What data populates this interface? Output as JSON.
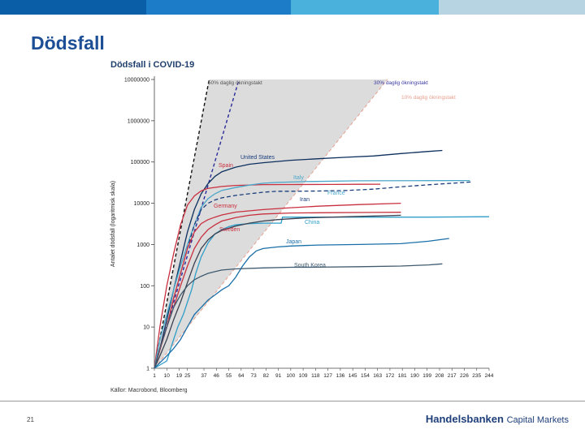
{
  "top_bar_colors": [
    "#0a5ea8",
    "#1d7cc8",
    "#4ab0dc",
    "#b7d4e3"
  ],
  "slide": {
    "title": "Dödsfall",
    "page_number": "21"
  },
  "logo": {
    "name": "Handelsbanken",
    "suffix": "Capital Markets",
    "color": "#1f3f7a"
  },
  "chart_data": {
    "type": "line",
    "title": "Dödsfall i COVID-19",
    "source": "Källor: Macrobond, Bloomberg",
    "xlabel": "",
    "ylabel": "Antalet dödsfall (logaritmisk skala)",
    "yscale": "log",
    "ylim": [
      1,
      10000000
    ],
    "y_ticks": [
      1,
      10,
      100,
      1000,
      10000,
      100000,
      1000000,
      10000000
    ],
    "y_tick_labels": [
      "1",
      "10",
      "100",
      "1000",
      "10000",
      "100000",
      "1000000",
      "10000000"
    ],
    "xlim": [
      1,
      244
    ],
    "x_ticks": [
      1,
      10,
      19,
      25,
      37,
      46,
      55,
      64,
      73,
      82,
      91,
      100,
      109,
      118,
      127,
      136,
      145,
      154,
      163,
      172,
      181,
      190,
      199,
      208,
      217,
      226,
      235,
      244
    ],
    "x_tick_labels": [
      "1",
      "10",
      "19",
      "25",
      "37",
      "46",
      "55",
      "64",
      "73",
      "82",
      "91",
      "100",
      "109",
      "118",
      "127",
      "136",
      "145",
      "154",
      "163",
      "172",
      "181",
      "190",
      "199",
      "208",
      "217",
      "226",
      "235",
      "244"
    ],
    "growth_lines": [
      {
        "label": "50% daglig ökningstakt",
        "rate": 0.5,
        "color": "#111111",
        "label_color": "#555555"
      },
      {
        "label": "30% daglig ökningstakt",
        "rate": 0.3,
        "color": "#2a2a9a",
        "label_color": "#3a3aa0"
      },
      {
        "label": "10% daglig ökningstakt",
        "rate": 0.1,
        "color": "#e8a090",
        "label_color": "#e8a090"
      }
    ],
    "series": [
      {
        "name": "United States",
        "color": "#0d2f5e",
        "label_color": "#1a3d7c",
        "dashed": false,
        "points": [
          [
            1,
            1
          ],
          [
            5,
            3
          ],
          [
            10,
            15
          ],
          [
            15,
            80
          ],
          [
            20,
            400
          ],
          [
            25,
            2000
          ],
          [
            30,
            7000
          ],
          [
            35,
            17000
          ],
          [
            40,
            30000
          ],
          [
            45,
            45000
          ],
          [
            50,
            58000
          ],
          [
            60,
            75000
          ],
          [
            70,
            88000
          ],
          [
            80,
            96000
          ],
          [
            100,
            110000
          ],
          [
            120,
            120000
          ],
          [
            140,
            130000
          ],
          [
            160,
            140000
          ],
          [
            180,
            160000
          ],
          [
            200,
            180000
          ],
          [
            210,
            190000
          ]
        ]
      },
      {
        "name": "Spain",
        "color": "#c9303f",
        "label_color": "#c9303f",
        "dashed": false,
        "points": [
          [
            1,
            1
          ],
          [
            5,
            10
          ],
          [
            10,
            100
          ],
          [
            15,
            600
          ],
          [
            20,
            3000
          ],
          [
            25,
            9000
          ],
          [
            30,
            15000
          ],
          [
            35,
            20000
          ],
          [
            40,
            23000
          ],
          [
            50,
            25500
          ],
          [
            60,
            27000
          ],
          [
            80,
            28300
          ],
          [
            100,
            28400
          ],
          [
            130,
            28500
          ],
          [
            150,
            28800
          ],
          [
            165,
            29000
          ]
        ]
      },
      {
        "name": "Italy",
        "color": "#4aa7c9",
        "label_color": "#4aa7c9",
        "dashed": false,
        "points": [
          [
            1,
            1
          ],
          [
            5,
            5
          ],
          [
            10,
            20
          ],
          [
            15,
            80
          ],
          [
            20,
            300
          ],
          [
            25,
            1000
          ],
          [
            30,
            3000
          ],
          [
            35,
            8000
          ],
          [
            40,
            13000
          ],
          [
            45,
            17000
          ],
          [
            50,
            20500
          ],
          [
            60,
            24000
          ],
          [
            70,
            27500
          ],
          [
            80,
            30500
          ],
          [
            90,
            32000
          ],
          [
            110,
            33500
          ],
          [
            150,
            35000
          ],
          [
            200,
            35400
          ],
          [
            230,
            35500
          ]
        ]
      },
      {
        "name": "France",
        "color": "#1a3d7c",
        "label_color": "#4aa7c9",
        "dashed": true,
        "points": [
          [
            1,
            1
          ],
          [
            10,
            10
          ],
          [
            15,
            50
          ],
          [
            20,
            200
          ],
          [
            25,
            800
          ],
          [
            30,
            3000
          ],
          [
            35,
            7000
          ],
          [
            40,
            10000
          ],
          [
            45,
            12000
          ],
          [
            50,
            13500
          ],
          [
            60,
            15500
          ],
          [
            70,
            17000
          ],
          [
            80,
            18500
          ],
          [
            90,
            19500
          ],
          [
            100,
            19500
          ],
          [
            120,
            19800
          ],
          [
            140,
            20300
          ],
          [
            160,
            22000
          ],
          [
            180,
            25000
          ],
          [
            200,
            28000
          ],
          [
            220,
            31000
          ],
          [
            232,
            33000
          ]
        ]
      },
      {
        "name": "Iran",
        "color": "#c9303f",
        "label_color": "#1a3d7c",
        "dashed": false,
        "points": [
          [
            1,
            1
          ],
          [
            5,
            3
          ],
          [
            10,
            10
          ],
          [
            15,
            50
          ],
          [
            20,
            200
          ],
          [
            25,
            800
          ],
          [
            30,
            2000
          ],
          [
            35,
            3200
          ],
          [
            40,
            4000
          ],
          [
            45,
            4600
          ],
          [
            50,
            5200
          ],
          [
            60,
            6100
          ],
          [
            80,
            7000
          ],
          [
            100,
            7800
          ],
          [
            120,
            8500
          ],
          [
            150,
            9300
          ],
          [
            180,
            10000
          ]
        ]
      },
      {
        "name": "Germany",
        "color": "#c9303f",
        "label_color": "#c9303f",
        "dashed": false,
        "points": [
          [
            1,
            1
          ],
          [
            10,
            10
          ],
          [
            15,
            30
          ],
          [
            20,
            100
          ],
          [
            25,
            300
          ],
          [
            30,
            800
          ],
          [
            35,
            1500
          ],
          [
            40,
            2300
          ],
          [
            45,
            3000
          ],
          [
            50,
            3700
          ],
          [
            60,
            4500
          ],
          [
            70,
            5100
          ],
          [
            80,
            5500
          ],
          [
            100,
            5800
          ],
          [
            130,
            5900
          ],
          [
            160,
            6000
          ],
          [
            180,
            6050
          ]
        ]
      },
      {
        "name": "China",
        "color": "#2e9ec9",
        "label_color": "#2e9ec9",
        "dashed": false,
        "points": [
          [
            1,
            1
          ],
          [
            10,
            1.5
          ],
          [
            15,
            5
          ],
          [
            18,
            10
          ],
          [
            22,
            20
          ],
          [
            25,
            40
          ],
          [
            28,
            80
          ],
          [
            31,
            200
          ],
          [
            35,
            500
          ],
          [
            40,
            1100
          ],
          [
            45,
            1800
          ],
          [
            50,
            2300
          ],
          [
            55,
            2700
          ],
          [
            60,
            3000
          ],
          [
            70,
            3200
          ],
          [
            80,
            3300
          ],
          [
            93,
            3300
          ],
          [
            94,
            4600
          ],
          [
            150,
            4600
          ],
          [
            200,
            4600
          ],
          [
            244,
            4700
          ]
        ]
      },
      {
        "name": "Sweden",
        "color": "#3a4050",
        "label_color": "#c9303f",
        "dashed": false,
        "points": [
          [
            1,
            1
          ],
          [
            5,
            2
          ],
          [
            10,
            5
          ],
          [
            15,
            15
          ],
          [
            20,
            40
          ],
          [
            25,
            120
          ],
          [
            30,
            350
          ],
          [
            35,
            800
          ],
          [
            40,
            1300
          ],
          [
            45,
            1800
          ],
          [
            50,
            2200
          ],
          [
            60,
            2800
          ],
          [
            70,
            3300
          ],
          [
            80,
            3700
          ],
          [
            90,
            4000
          ],
          [
            100,
            4200
          ],
          [
            110,
            4400
          ],
          [
            130,
            4600
          ],
          [
            150,
            4800
          ],
          [
            170,
            5000
          ],
          [
            180,
            5100
          ]
        ]
      },
      {
        "name": "Japan",
        "color": "#1a6fa8",
        "label_color": "#1a6fa8",
        "dashed": false,
        "points": [
          [
            1,
            1
          ],
          [
            10,
            2
          ],
          [
            15,
            3
          ],
          [
            20,
            5
          ],
          [
            25,
            10
          ],
          [
            30,
            20
          ],
          [
            35,
            30
          ],
          [
            40,
            45
          ],
          [
            45,
            60
          ],
          [
            50,
            80
          ],
          [
            55,
            100
          ],
          [
            60,
            160
          ],
          [
            65,
            300
          ],
          [
            70,
            500
          ],
          [
            75,
            700
          ],
          [
            80,
            800
          ],
          [
            90,
            870
          ],
          [
            100,
            920
          ],
          [
            120,
            970
          ],
          [
            150,
            1000
          ],
          [
            180,
            1050
          ],
          [
            200,
            1200
          ],
          [
            215,
            1400
          ]
        ]
      },
      {
        "name": "South Korea",
        "color": "#3f5a6e",
        "label_color": "#3f5a6e",
        "dashed": false,
        "points": [
          [
            1,
            1
          ],
          [
            5,
            3
          ],
          [
            10,
            10
          ],
          [
            15,
            30
          ],
          [
            20,
            60
          ],
          [
            25,
            100
          ],
          [
            30,
            140
          ],
          [
            35,
            170
          ],
          [
            40,
            200
          ],
          [
            45,
            220
          ],
          [
            50,
            240
          ],
          [
            60,
            256
          ],
          [
            80,
            270
          ],
          [
            100,
            280
          ],
          [
            120,
            282
          ],
          [
            150,
            290
          ],
          [
            180,
            300
          ],
          [
            200,
            320
          ],
          [
            210,
            340
          ]
        ]
      }
    ]
  }
}
